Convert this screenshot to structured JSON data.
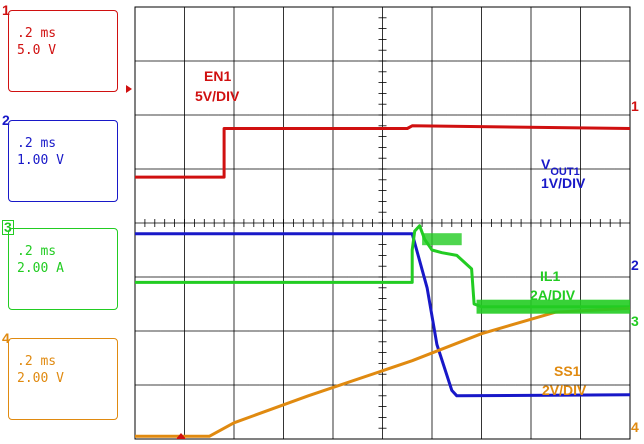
{
  "channels": [
    {
      "id": 1,
      "number": "1",
      "time_div": ".2 ms",
      "scale": "5.0  V",
      "color": "#d01010",
      "name": "EN1",
      "per_div": "5V/DIV"
    },
    {
      "id": 2,
      "number": "2",
      "time_div": ".2 ms",
      "scale": "1.00  V",
      "color": "#1818c8",
      "name": "V",
      "sub": "OUT1",
      "per_div": "1V/DIV"
    },
    {
      "id": 3,
      "number": "3",
      "time_div": ".2 ms",
      "scale": "2.00  A",
      "color": "#22cc22",
      "name": "IL1",
      "per_div": "2A/DIV"
    },
    {
      "id": 4,
      "number": "4",
      "time_div": ".2 ms",
      "scale": "2.00  V",
      "color": "#e08a10",
      "name": "SS1",
      "per_div": "2V/DIV"
    }
  ],
  "chart_data": {
    "type": "line",
    "x_divisions": 10,
    "y_divisions": 8,
    "grid": true,
    "x_unit": "div",
    "y_unit": "div",
    "series": [
      {
        "name": "EN1",
        "x": [
          0,
          1.8,
          1.8,
          5.5,
          5.6,
          10
        ],
        "y": [
          4.85,
          4.85,
          5.75,
          5.75,
          5.8,
          5.75
        ]
      },
      {
        "name": "VOUT1",
        "x": [
          0,
          5.6,
          5.9,
          6.1,
          6.4,
          6.5,
          10
        ],
        "y": [
          3.8,
          3.8,
          2.8,
          1.75,
          0.9,
          0.8,
          0.82
        ]
      },
      {
        "name": "IL1",
        "x": [
          0,
          5.6,
          5.6,
          5.65,
          5.75,
          5.85,
          6.0,
          6.2,
          6.5,
          6.8,
          6.85,
          7.0,
          10
        ],
        "y": [
          2.9,
          2.9,
          3.5,
          3.85,
          3.95,
          3.7,
          3.5,
          3.45,
          3.4,
          3.15,
          2.5,
          2.45,
          2.45
        ]
      },
      {
        "name": "SS1",
        "x": [
          0,
          1.5,
          2.0,
          3.5,
          5.6,
          7.0,
          8.5,
          10
        ],
        "y": [
          0.05,
          0.05,
          0.3,
          0.8,
          1.45,
          1.95,
          2.35,
          2.42
        ]
      }
    ]
  }
}
